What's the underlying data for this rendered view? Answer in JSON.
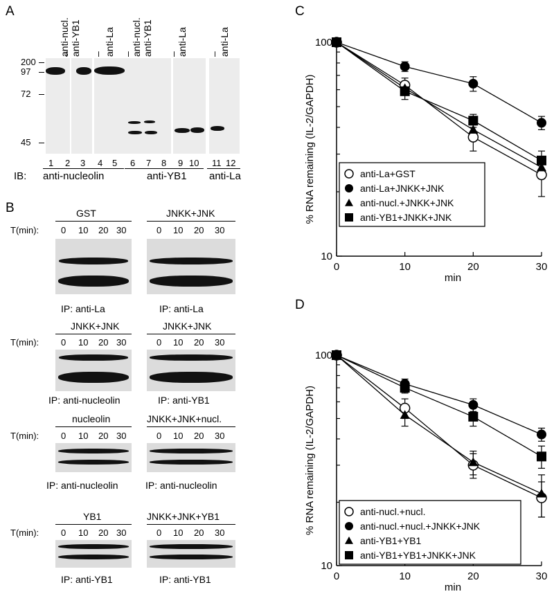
{
  "panelA": {
    "label": "A",
    "markers": [
      "200",
      "97",
      "72",
      "45"
    ],
    "lanes_top": [
      "–",
      "anti-nucl.",
      "anti-YB1",
      "–",
      "anti-La",
      "–",
      "anti-nucl.",
      "anti-YB1",
      "–",
      "anti-La",
      "–",
      "anti-La"
    ],
    "lane_numbers": [
      "1",
      "2",
      "3",
      "4",
      "5",
      "6",
      "7",
      "8",
      "9",
      "10",
      "11",
      "12"
    ],
    "ib_prefix": "IB:",
    "ib_labels": [
      "anti-nucleolin",
      "anti-YB1",
      "anti-La"
    ]
  },
  "panelB": {
    "label": "B",
    "tlabel": "T(min):",
    "times": [
      "0",
      "10",
      "20",
      "30"
    ],
    "rows": [
      {
        "left_header": "GST",
        "right_header": "JNKK+JNK",
        "left_ip": "IP: anti-La",
        "right_ip": "IP: anti-La"
      },
      {
        "left_header": "JNKK+JNK",
        "right_header": "JNKK+JNK",
        "left_ip": "IP: anti-nucleolin",
        "right_ip": "IP: anti-YB1"
      },
      {
        "left_header": "nucleolin",
        "right_header": "JNKK+JNK+nucl.",
        "left_ip": "IP: anti-nucleolin",
        "right_ip": "IP: anti-nucleolin"
      },
      {
        "left_header": "YB1",
        "right_header": "JNKK+JNK+YB1",
        "left_ip": "IP: anti-YB1",
        "right_ip": "IP: anti-YB1"
      }
    ]
  },
  "chart_data": [
    {
      "panel": "C",
      "type": "line",
      "xlabel": "min",
      "ylabel": "% RNA remaining (IL-2/GAPDH)",
      "xlim": [
        0,
        30
      ],
      "ylim": [
        10,
        100
      ],
      "yscale": "log",
      "xticks": [
        "0",
        "10",
        "20",
        "30"
      ],
      "yticks": [
        "10",
        "100"
      ],
      "legend_position": "bottom-left",
      "series": [
        {
          "name": "anti-La+GST",
          "marker": "open-circle",
          "x": [
            0,
            10,
            20,
            30
          ],
          "y": [
            100,
            63,
            36,
            24
          ],
          "err": [
            0,
            5,
            5,
            5
          ]
        },
        {
          "name": "anti-La+JNKK+JNK",
          "marker": "filled-circle",
          "x": [
            0,
            10,
            20,
            30
          ],
          "y": [
            100,
            77,
            64,
            42
          ],
          "err": [
            0,
            4,
            5,
            3
          ]
        },
        {
          "name": "anti-nucl.+JNKK+JNK",
          "marker": "filled-triangle",
          "x": [
            0,
            10,
            20,
            30
          ],
          "y": [
            100,
            61,
            39,
            26
          ],
          "err": [
            0,
            4,
            4,
            3
          ]
        },
        {
          "name": "anti-YB1+JNKK+JNK",
          "marker": "filled-square",
          "x": [
            0,
            10,
            20,
            30
          ],
          "y": [
            100,
            59,
            43,
            28
          ],
          "err": [
            0,
            5,
            3,
            3
          ]
        }
      ]
    },
    {
      "panel": "D",
      "type": "line",
      "xlabel": "min",
      "ylabel": "% RNA remaining (IL-2/GAPDH)",
      "xlim": [
        0,
        30
      ],
      "ylim": [
        10,
        100
      ],
      "yscale": "log",
      "xticks": [
        "0",
        "10",
        "20",
        "30"
      ],
      "yticks": [
        "10",
        "100"
      ],
      "legend_position": "bottom-left",
      "series": [
        {
          "name": "anti-nucl.+nucl.",
          "marker": "open-circle",
          "x": [
            0,
            10,
            20,
            30
          ],
          "y": [
            100,
            56,
            30,
            21
          ],
          "err": [
            0,
            6,
            4,
            4
          ]
        },
        {
          "name": "anti-nucl.+nucl.+JNKK+JNK",
          "marker": "filled-circle",
          "x": [
            0,
            10,
            20,
            30
          ],
          "y": [
            100,
            73,
            58,
            42
          ],
          "err": [
            0,
            4,
            4,
            3
          ]
        },
        {
          "name": "anti-YB1+YB1",
          "marker": "filled-triangle",
          "x": [
            0,
            10,
            20,
            30
          ],
          "y": [
            100,
            52,
            31,
            22
          ],
          "err": [
            0,
            6,
            4,
            5
          ]
        },
        {
          "name": "anti-YB1+YB1+JNKK+JNK",
          "marker": "filled-square",
          "x": [
            0,
            10,
            20,
            30
          ],
          "y": [
            100,
            70,
            51,
            33
          ],
          "err": [
            0,
            4,
            5,
            4
          ]
        }
      ]
    }
  ]
}
